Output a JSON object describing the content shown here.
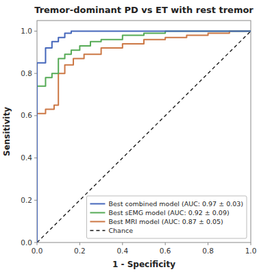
{
  "chart_data": {
    "type": "line",
    "title": "Tremor-dominant PD vs ET with rest tremor",
    "x_label": "1 - Specificity",
    "y_label": "Sensitivity",
    "xlim": [
      0.0,
      1.0
    ],
    "ylim": [
      0.0,
      1.05
    ],
    "xticks": [
      {
        "value": 0.0,
        "label": "0.0"
      },
      0.2,
      0.4,
      0.6,
      0.8,
      {
        "value": 1.0,
        "label": "1.0"
      }
    ],
    "yticks": [
      {
        "value": 0.0,
        "label": "0.0"
      },
      0.2,
      0.4,
      0.6,
      0.8,
      {
        "value": 1.0,
        "label": "1.0"
      }
    ],
    "grid": false,
    "legend": "lower right",
    "series": [
      {
        "name": "Chance",
        "color": "#111111",
        "line_style": "dashed",
        "x": [
          0,
          1
        ],
        "values": [
          0,
          1
        ]
      },
      {
        "name": "Best MRI model (AUC: 0.87 ± 0.05)",
        "color": "#cc7744",
        "x": [
          0.0,
          0.0,
          0.04,
          0.04,
          0.08,
          0.08,
          0.1,
          0.1,
          0.13,
          0.13,
          0.17,
          0.17,
          0.22,
          0.22,
          0.3,
          0.3,
          0.4,
          0.4,
          0.5,
          0.5,
          0.6,
          0.6,
          0.7,
          0.7,
          0.8,
          0.8,
          0.9,
          0.9,
          1.0
        ],
        "values": [
          0.0,
          0.61,
          0.61,
          0.63,
          0.63,
          0.65,
          0.65,
          0.8,
          0.8,
          0.84,
          0.84,
          0.87,
          0.87,
          0.89,
          0.89,
          0.92,
          0.92,
          0.94,
          0.94,
          0.96,
          0.96,
          0.97,
          0.97,
          0.98,
          0.98,
          0.99,
          0.99,
          1.0,
          1.0
        ]
      },
      {
        "name": "Best sEMG model (AUC: 0.92 ± 0.09)",
        "color": "#55aa55",
        "x": [
          0.0,
          0.0,
          0.04,
          0.04,
          0.07,
          0.07,
          0.1,
          0.1,
          0.13,
          0.13,
          0.16,
          0.16,
          0.2,
          0.2,
          0.25,
          0.25,
          0.3,
          0.3,
          0.4,
          0.4,
          0.5,
          0.5,
          0.6,
          0.6,
          0.7,
          0.8,
          0.9,
          1.0
        ],
        "values": [
          0.0,
          0.74,
          0.74,
          0.78,
          0.78,
          0.8,
          0.8,
          0.87,
          0.87,
          0.89,
          0.89,
          0.91,
          0.91,
          0.93,
          0.93,
          0.95,
          0.95,
          0.96,
          0.96,
          0.98,
          0.98,
          0.99,
          0.99,
          1.0,
          1.0,
          1.0,
          1.0,
          1.0
        ]
      },
      {
        "name": "Best combined model (AUC: 0.97 ± 0.03)",
        "color": "#4466bb",
        "x": [
          0.0,
          0.0,
          0.04,
          0.04,
          0.07,
          0.07,
          0.1,
          0.1,
          0.13,
          0.13,
          0.16,
          0.16,
          0.2,
          0.3,
          0.4,
          0.5,
          0.6,
          0.7,
          0.8,
          0.9,
          1.0
        ],
        "values": [
          0.0,
          0.85,
          0.85,
          0.92,
          0.92,
          0.95,
          0.95,
          0.97,
          0.97,
          0.99,
          0.99,
          1.0,
          1.0,
          1.0,
          1.0,
          1.0,
          1.0,
          1.0,
          1.0,
          1.0,
          1.0
        ]
      }
    ]
  }
}
